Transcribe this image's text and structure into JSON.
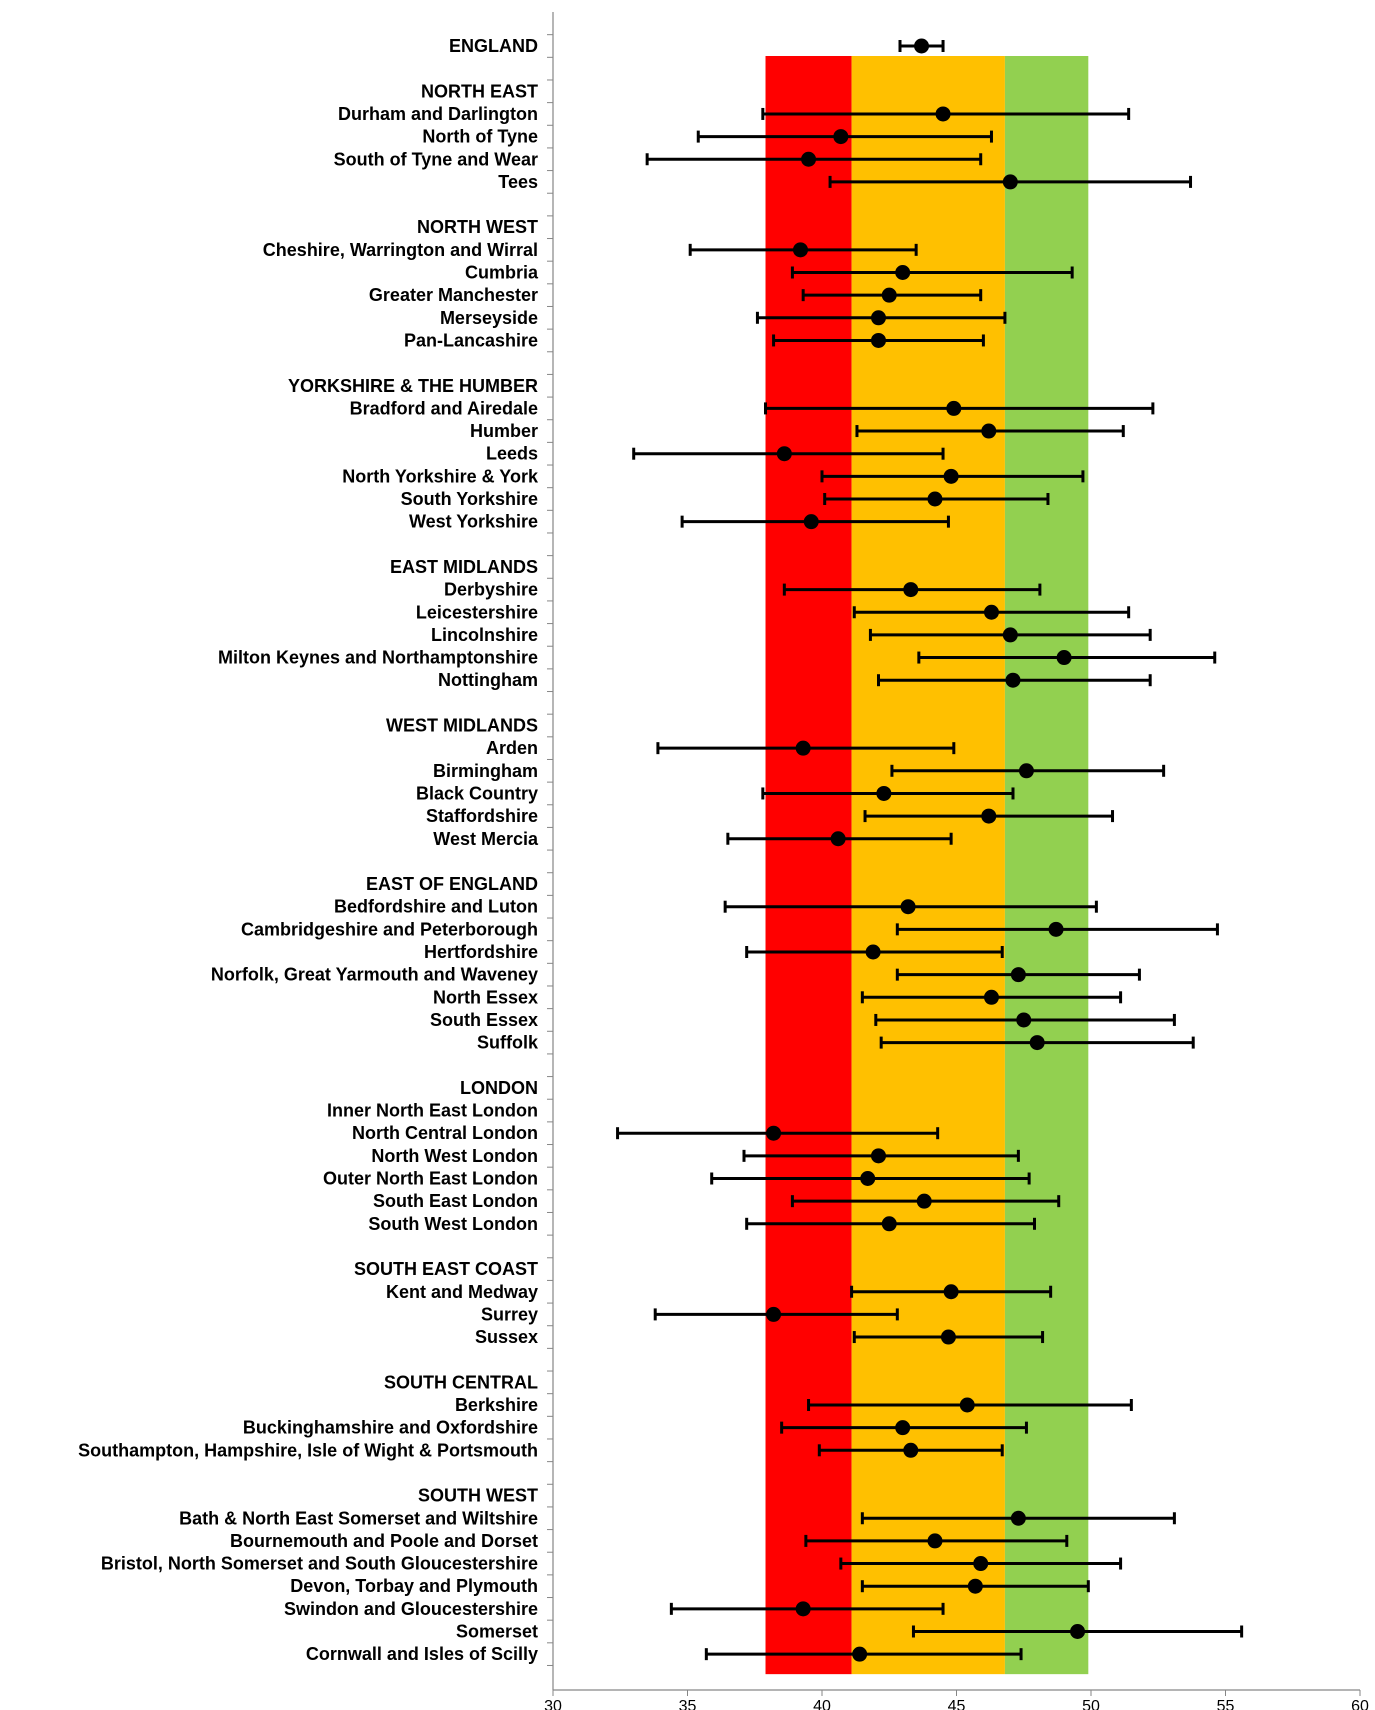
{
  "chart_data": {
    "type": "dot-errorbar",
    "title": "",
    "xlabel": "",
    "ylabel": "",
    "xlim": [
      30,
      60
    ],
    "x_ticks": [
      "30",
      "35",
      "40",
      "45",
      "50",
      "55",
      "60"
    ],
    "bands": [
      {
        "from": 37.9,
        "to": 41.1,
        "color": "#ff0000"
      },
      {
        "from": 41.1,
        "to": 46.8,
        "color": "#ffc000"
      },
      {
        "from": 46.8,
        "to": 49.9,
        "color": "#92d050"
      }
    ],
    "rows": [
      {
        "label": "ENGLAND",
        "value": 43.7,
        "low": 42.9,
        "high": 44.5
      },
      {
        "label": "",
        "value": null,
        "low": null,
        "high": null
      },
      {
        "label": "NORTH EAST",
        "value": null,
        "low": null,
        "high": null
      },
      {
        "label": "Durham and Darlington",
        "value": 44.5,
        "low": 37.8,
        "high": 51.4
      },
      {
        "label": "North of Tyne",
        "value": 40.7,
        "low": 35.4,
        "high": 46.3
      },
      {
        "label": "South of Tyne and Wear",
        "value": 39.5,
        "low": 33.5,
        "high": 45.9
      },
      {
        "label": "Tees",
        "value": 47.0,
        "low": 40.3,
        "high": 53.7
      },
      {
        "label": "",
        "value": null,
        "low": null,
        "high": null
      },
      {
        "label": "NORTH WEST",
        "value": null,
        "low": null,
        "high": null
      },
      {
        "label": "Cheshire, Warrington and Wirral",
        "value": 39.2,
        "low": 35.1,
        "high": 43.5
      },
      {
        "label": "Cumbria",
        "value": 43.0,
        "low": 38.9,
        "high": 49.3
      },
      {
        "label": "Greater Manchester",
        "value": 42.5,
        "low": 39.3,
        "high": 45.9
      },
      {
        "label": "Merseyside",
        "value": 42.1,
        "low": 37.6,
        "high": 46.8
      },
      {
        "label": "Pan-Lancashire",
        "value": 42.1,
        "low": 38.2,
        "high": 46.0
      },
      {
        "label": "",
        "value": null,
        "low": null,
        "high": null
      },
      {
        "label": "YORKSHIRE & THE HUMBER",
        "value": null,
        "low": null,
        "high": null
      },
      {
        "label": "Bradford and Airedale",
        "value": 44.9,
        "low": 37.9,
        "high": 52.3
      },
      {
        "label": "Humber",
        "value": 46.2,
        "low": 41.3,
        "high": 51.2
      },
      {
        "label": "Leeds",
        "value": 38.6,
        "low": 33.0,
        "high": 44.5
      },
      {
        "label": "North Yorkshire & York",
        "value": 44.8,
        "low": 40.0,
        "high": 49.7
      },
      {
        "label": "South Yorkshire",
        "value": 44.2,
        "low": 40.1,
        "high": 48.4
      },
      {
        "label": "West Yorkshire",
        "value": 39.6,
        "low": 34.8,
        "high": 44.7
      },
      {
        "label": "",
        "value": null,
        "low": null,
        "high": null
      },
      {
        "label": "EAST MIDLANDS",
        "value": null,
        "low": null,
        "high": null
      },
      {
        "label": "Derbyshire",
        "value": 43.3,
        "low": 38.6,
        "high": 48.1
      },
      {
        "label": "Leicestershire",
        "value": 46.3,
        "low": 41.2,
        "high": 51.4
      },
      {
        "label": "Lincolnshire",
        "value": 47.0,
        "low": 41.8,
        "high": 52.2
      },
      {
        "label": "Milton Keynes and Northamptonshire",
        "value": 49.0,
        "low": 43.6,
        "high": 54.6
      },
      {
        "label": "Nottingham",
        "value": 47.1,
        "low": 42.1,
        "high": 52.2
      },
      {
        "label": "",
        "value": null,
        "low": null,
        "high": null
      },
      {
        "label": "WEST MIDLANDS",
        "value": null,
        "low": null,
        "high": null
      },
      {
        "label": "Arden",
        "value": 39.3,
        "low": 33.9,
        "high": 44.9
      },
      {
        "label": "Birmingham",
        "value": 47.6,
        "low": 42.6,
        "high": 52.7
      },
      {
        "label": "Black Country",
        "value": 42.3,
        "low": 37.8,
        "high": 47.1
      },
      {
        "label": "Staffordshire",
        "value": 46.2,
        "low": 41.6,
        "high": 50.8
      },
      {
        "label": "West Mercia",
        "value": 40.6,
        "low": 36.5,
        "high": 44.8
      },
      {
        "label": "",
        "value": null,
        "low": null,
        "high": null
      },
      {
        "label": "EAST OF ENGLAND",
        "value": null,
        "low": null,
        "high": null
      },
      {
        "label": "Bedfordshire and Luton",
        "value": 43.2,
        "low": 36.4,
        "high": 50.2
      },
      {
        "label": "Cambridgeshire and Peterborough",
        "value": 48.7,
        "low": 42.8,
        "high": 54.7
      },
      {
        "label": "Hertfordshire",
        "value": 41.9,
        "low": 37.2,
        "high": 46.7
      },
      {
        "label": "Norfolk, Great Yarmouth and Waveney",
        "value": 47.3,
        "low": 42.8,
        "high": 51.8
      },
      {
        "label": "North Essex",
        "value": 46.3,
        "low": 41.5,
        "high": 51.1
      },
      {
        "label": "South Essex",
        "value": 47.5,
        "low": 42.0,
        "high": 53.1
      },
      {
        "label": "Suffolk",
        "value": 48.0,
        "low": 42.2,
        "high": 53.8
      },
      {
        "label": "",
        "value": null,
        "low": null,
        "high": null
      },
      {
        "label": "LONDON",
        "value": null,
        "low": null,
        "high": null
      },
      {
        "label": "Inner North East London",
        "value": null,
        "low": null,
        "high": null
      },
      {
        "label": "North Central London",
        "value": 38.2,
        "low": 32.4,
        "high": 44.3
      },
      {
        "label": "North West London",
        "value": 42.1,
        "low": 37.1,
        "high": 47.3
      },
      {
        "label": "Outer North East London",
        "value": 41.7,
        "low": 35.9,
        "high": 47.7
      },
      {
        "label": "South East London",
        "value": 43.8,
        "low": 38.9,
        "high": 48.8
      },
      {
        "label": "South West London",
        "value": 42.5,
        "low": 37.2,
        "high": 47.9
      },
      {
        "label": "",
        "value": null,
        "low": null,
        "high": null
      },
      {
        "label": "SOUTH EAST COAST",
        "value": null,
        "low": null,
        "high": null
      },
      {
        "label": "Kent and Medway",
        "value": 44.8,
        "low": 41.1,
        "high": 48.5
      },
      {
        "label": "Surrey",
        "value": 38.2,
        "low": 33.8,
        "high": 42.8
      },
      {
        "label": "Sussex",
        "value": 44.7,
        "low": 41.2,
        "high": 48.2
      },
      {
        "label": "",
        "value": null,
        "low": null,
        "high": null
      },
      {
        "label": "SOUTH CENTRAL",
        "value": null,
        "low": null,
        "high": null
      },
      {
        "label": "Berkshire",
        "value": 45.4,
        "low": 39.5,
        "high": 51.5
      },
      {
        "label": "Buckinghamshire and Oxfordshire",
        "value": 43.0,
        "low": 38.5,
        "high": 47.6
      },
      {
        "label": "Southampton, Hampshire, Isle of Wight & Portsmouth",
        "value": 43.3,
        "low": 39.9,
        "high": 46.7
      },
      {
        "label": "",
        "value": null,
        "low": null,
        "high": null
      },
      {
        "label": "SOUTH WEST",
        "value": null,
        "low": null,
        "high": null
      },
      {
        "label": "Bath & North East Somerset and Wiltshire",
        "value": 47.3,
        "low": 41.5,
        "high": 53.1
      },
      {
        "label": "Bournemouth and Poole and Dorset",
        "value": 44.2,
        "low": 39.4,
        "high": 49.1
      },
      {
        "label": "Bristol, North Somerset and South Gloucestershire",
        "value": 45.9,
        "low": 40.7,
        "high": 51.1
      },
      {
        "label": "Devon, Torbay and Plymouth",
        "value": 45.7,
        "low": 41.5,
        "high": 49.9
      },
      {
        "label": "Swindon and Gloucestershire",
        "value": 39.3,
        "low": 34.4,
        "high": 44.5
      },
      {
        "label": "Somerset",
        "value": 49.5,
        "low": 43.4,
        "high": 55.6
      },
      {
        "label": "Cornwall and Isles of Scilly",
        "value": 41.4,
        "low": 35.7,
        "high": 47.4
      }
    ]
  }
}
